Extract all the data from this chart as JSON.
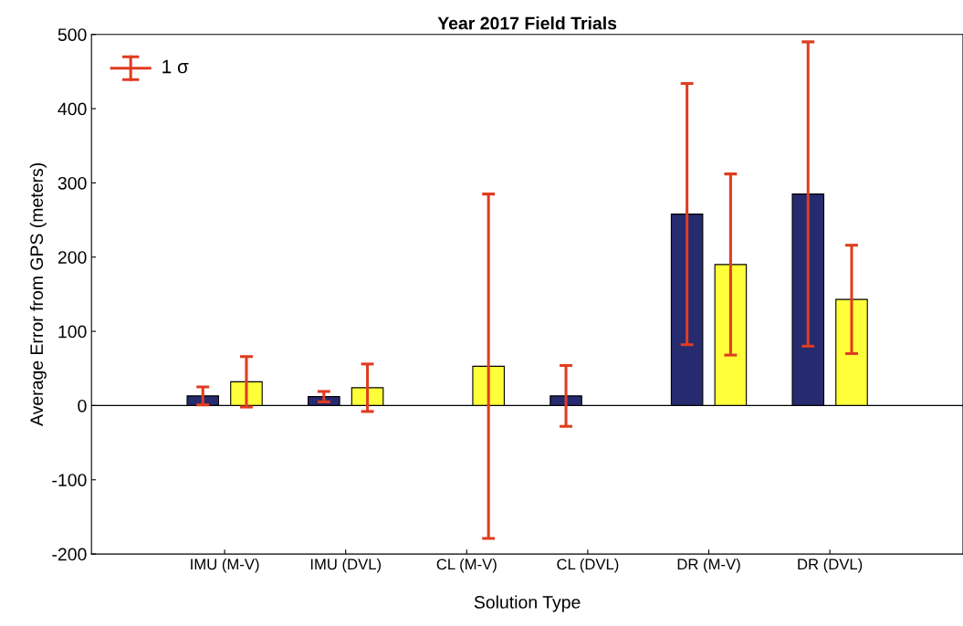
{
  "chart_data": {
    "type": "bar",
    "title": "Year 2017 Field Trials",
    "xlabel": "Solution Type",
    "ylabel": "Average Error from GPS (meters)",
    "categories": [
      "IMU (M-V)",
      "IMU (DVL)",
      "CL (M-V)",
      "CL (DVL)",
      "DR (M-V)",
      "DR (DVL)"
    ],
    "series": [
      {
        "color": "#262a6e",
        "values": [
          13,
          12,
          null,
          13,
          258,
          285
        ],
        "errors": [
          12,
          7,
          null,
          41,
          176,
          205
        ]
      },
      {
        "color": "#ffff3a",
        "values": [
          32,
          24,
          53,
          null,
          190,
          143
        ],
        "errors": [
          34,
          32,
          232,
          null,
          122,
          73
        ]
      }
    ],
    "ylim": [
      -200,
      500
    ],
    "yticks": [
      -200,
      -100,
      0,
      100,
      200,
      300,
      400,
      500
    ],
    "grid": false,
    "ref_lines": [
      {
        "axis": "y",
        "value": 0,
        "color": "#000000"
      }
    ],
    "annotations": [
      "1 σ"
    ]
  }
}
